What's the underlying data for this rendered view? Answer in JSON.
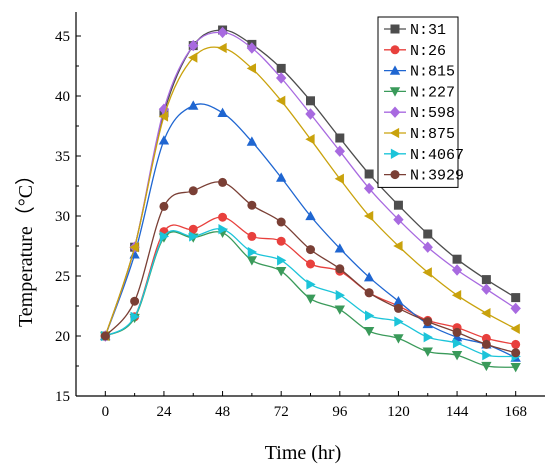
{
  "chart_data": {
    "type": "line",
    "title": "",
    "xlabel": "Time (hr)",
    "ylabel": "Temperature（°C）",
    "xlim": [
      -12,
      180
    ],
    "ylim": [
      15,
      47
    ],
    "xticks": [
      0,
      24,
      48,
      72,
      96,
      120,
      144,
      168
    ],
    "yticks": [
      15,
      20,
      25,
      30,
      35,
      40,
      45
    ],
    "grid": false,
    "legend_position": "top-right",
    "x": [
      0,
      12,
      24,
      36,
      48,
      60,
      72,
      84,
      96,
      108,
      120,
      132,
      144,
      156,
      168
    ],
    "series": [
      {
        "name": "N:31",
        "color": "#4d4d4d",
        "marker": "square",
        "values": [
          20.0,
          27.4,
          38.6,
          44.2,
          45.5,
          44.3,
          42.3,
          39.6,
          36.5,
          33.5,
          30.9,
          28.5,
          26.4,
          24.7,
          23.2
        ]
      },
      {
        "name": "N:26",
        "color": "#e8403d",
        "marker": "circle",
        "values": [
          20.0,
          21.6,
          28.7,
          28.9,
          29.9,
          28.3,
          27.9,
          26.0,
          25.4,
          23.6,
          22.5,
          21.3,
          20.7,
          19.8,
          19.3
        ]
      },
      {
        "name": "N:815",
        "color": "#1f66d1",
        "marker": "triangle-up",
        "values": [
          20.0,
          26.8,
          36.3,
          39.2,
          38.6,
          36.2,
          33.2,
          30.0,
          27.3,
          24.9,
          22.9,
          21.0,
          19.9,
          19.3,
          18.2
        ]
      },
      {
        "name": "N:227",
        "color": "#3a9a5a",
        "marker": "triangle-down",
        "values": [
          20.0,
          21.5,
          28.2,
          28.2,
          28.6,
          26.3,
          25.4,
          23.1,
          22.2,
          20.4,
          19.8,
          18.7,
          18.4,
          17.5,
          17.4
        ]
      },
      {
        "name": "N:598",
        "color": "#a86ae0",
        "marker": "diamond",
        "values": [
          20.0,
          27.4,
          38.9,
          44.2,
          45.3,
          44.0,
          41.5,
          38.5,
          35.4,
          32.3,
          29.7,
          27.4,
          25.5,
          23.9,
          22.3
        ]
      },
      {
        "name": "N:875",
        "color": "#c9a20c",
        "marker": "triangle-left",
        "values": [
          20.0,
          27.4,
          38.3,
          43.2,
          44.0,
          42.3,
          39.6,
          36.4,
          33.1,
          30.0,
          27.5,
          25.3,
          23.4,
          21.9,
          20.6
        ]
      },
      {
        "name": "N:4067",
        "color": "#1cc4d9",
        "marker": "triangle-right",
        "values": [
          20.0,
          21.6,
          28.3,
          28.3,
          28.9,
          27.0,
          26.3,
          24.3,
          23.4,
          21.7,
          21.2,
          19.9,
          19.4,
          18.4,
          18.3
        ]
      },
      {
        "name": "N:3929",
        "color": "#7a3f35",
        "marker": "circle",
        "values": [
          20.0,
          22.9,
          30.8,
          32.1,
          32.8,
          30.9,
          29.5,
          27.2,
          25.6,
          23.6,
          22.3,
          21.2,
          20.3,
          19.3,
          18.6
        ]
      }
    ]
  }
}
